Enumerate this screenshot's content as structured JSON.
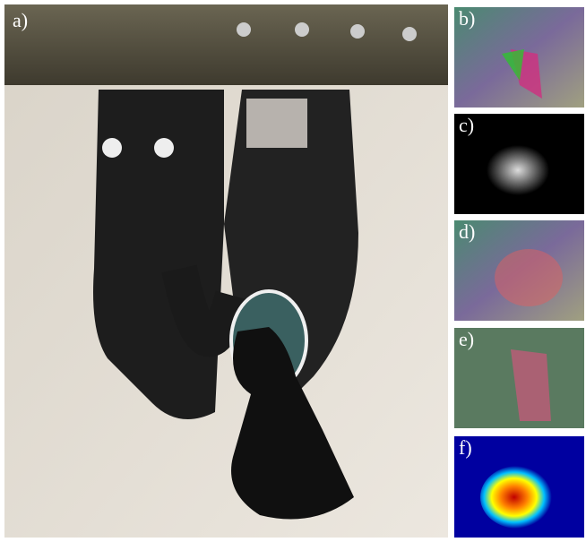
{
  "panels": [
    {
      "label": "a)"
    },
    {
      "label": "b)"
    },
    {
      "label": "c)"
    },
    {
      "label": "d)"
    },
    {
      "label": "e)"
    },
    {
      "label": "f)"
    }
  ]
}
